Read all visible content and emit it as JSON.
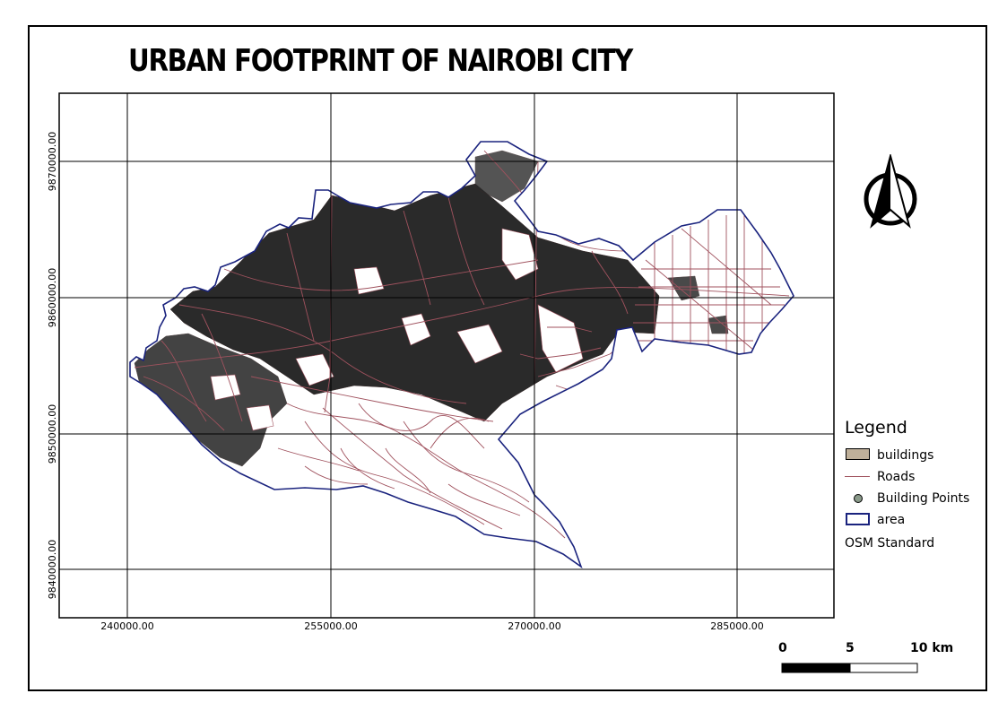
{
  "title": "URBAN FOOTPRINT OF NAIROBI CITY",
  "axes": {
    "y_labels": [
      "9870000.00",
      "9860000.00",
      "9850000.00",
      "9840000.00"
    ],
    "x_labels": [
      "240000.00",
      "255000.00",
      "270000.00",
      "285000.00"
    ]
  },
  "legend": {
    "title": "Legend",
    "items": [
      {
        "label": "buildings",
        "symbol": "buildings-swatch",
        "color": "#bfb09a"
      },
      {
        "label": "Roads",
        "symbol": "roads-line",
        "color": "#a0525e"
      },
      {
        "label": "Building Points",
        "symbol": "points-dot",
        "color": "#8a9a8a"
      },
      {
        "label": "area",
        "symbol": "area-outline",
        "color": "#1a237e"
      }
    ],
    "basemap": "OSM Standard"
  },
  "scale_bar": {
    "labels": [
      "0",
      "5",
      "10 km"
    ]
  },
  "colors": {
    "built_up": "#2a2a2a",
    "roads": "#a0525e",
    "boundary": "#1a237e",
    "grid": "#000000"
  },
  "icons": {
    "north_arrow": "north-arrow-icon"
  }
}
